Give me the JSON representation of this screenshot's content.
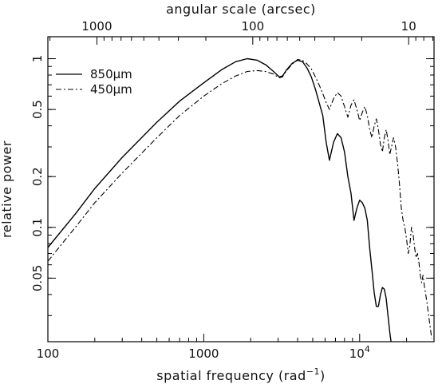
{
  "chart_data": {
    "type": "line",
    "title": "",
    "xlabel": "spatial frequency (rad",
    "xlabel_sup": "−1",
    "xlabel_close": ")",
    "ylabel": "relative power",
    "top_xlabel": "angular scale (arcsec)",
    "x_scale": "log",
    "y_scale": "log",
    "xlim": [
      100,
      30000
    ],
    "ylim": [
      0.021,
      1.35
    ],
    "x_ticks": [
      {
        "value": 100,
        "label": "100"
      },
      {
        "value": 1000,
        "label": "1000"
      },
      {
        "value": 10000,
        "label": "10",
        "sup": "4"
      }
    ],
    "y_ticks": [
      {
        "value": 1,
        "label": "1"
      },
      {
        "value": 0.5,
        "label": "0.5"
      },
      {
        "value": 0.2,
        "label": "0.2"
      },
      {
        "value": 0.1,
        "label": "0.1"
      },
      {
        "value": 0.05,
        "label": "0.05"
      }
    ],
    "top_ticks": [
      {
        "value": 1000,
        "label": "1000"
      },
      {
        "value": 100,
        "label": "100"
      },
      {
        "value": 10,
        "label": "10"
      }
    ],
    "legend_position": "top-left",
    "series": [
      {
        "name": "850μm",
        "color": "#000000",
        "style": "solid",
        "x": [
          100,
          150,
          200,
          300,
          500,
          700,
          1000,
          1300,
          1600,
          1900,
          2200,
          2500,
          2800,
          3050,
          3200,
          3400,
          3700,
          4000,
          4300,
          4600,
          4900,
          5200,
          5500,
          5800,
          6100,
          6400,
          6800,
          7200,
          7600,
          8000,
          8400,
          8800,
          9200,
          9600,
          10000,
          10400,
          10800,
          11200,
          11600,
          12000,
          12400,
          12800,
          13200,
          13600,
          14000,
          14400,
          14800,
          15200,
          15600,
          15900
        ],
        "y": [
          0.076,
          0.12,
          0.17,
          0.26,
          0.42,
          0.56,
          0.72,
          0.86,
          0.96,
          1.0,
          0.98,
          0.92,
          0.84,
          0.78,
          0.79,
          0.86,
          0.94,
          0.98,
          0.96,
          0.88,
          0.78,
          0.66,
          0.55,
          0.46,
          0.32,
          0.25,
          0.32,
          0.36,
          0.34,
          0.28,
          0.2,
          0.16,
          0.11,
          0.13,
          0.145,
          0.14,
          0.13,
          0.11,
          0.075,
          0.056,
          0.041,
          0.034,
          0.034,
          0.04,
          0.044,
          0.043,
          0.038,
          0.03,
          0.024,
          0.021
        ]
      },
      {
        "name": "450μm",
        "color": "#000000",
        "style": "dashdot",
        "x": [
          100,
          150,
          200,
          300,
          500,
          700,
          1000,
          1300,
          1600,
          1900,
          2200,
          2500,
          2800,
          3050,
          3200,
          3400,
          3700,
          4000,
          4300,
          4600,
          4900,
          5200,
          5500,
          5800,
          6100,
          6400,
          6800,
          7200,
          7600,
          8000,
          8400,
          8800,
          9200,
          9600,
          10000,
          10400,
          10800,
          11200,
          11600,
          12000,
          12400,
          12800,
          13200,
          13600,
          14000,
          14400,
          14800,
          15200,
          15600,
          16000,
          16500,
          17000,
          17500,
          18000,
          18500,
          19000,
          19500,
          20000,
          20500,
          21000,
          21500,
          22000,
          22500,
          23000,
          23500,
          24000,
          24500,
          25000,
          25500,
          26000,
          27000,
          28000,
          29000
        ],
        "y": [
          0.063,
          0.1,
          0.14,
          0.21,
          0.34,
          0.46,
          0.6,
          0.71,
          0.79,
          0.84,
          0.85,
          0.84,
          0.81,
          0.77,
          0.78,
          0.85,
          0.93,
          0.99,
          0.98,
          0.93,
          0.87,
          0.78,
          0.7,
          0.62,
          0.55,
          0.5,
          0.58,
          0.63,
          0.6,
          0.52,
          0.45,
          0.53,
          0.57,
          0.5,
          0.43,
          0.48,
          0.52,
          0.46,
          0.38,
          0.34,
          0.4,
          0.44,
          0.38,
          0.31,
          0.28,
          0.34,
          0.38,
          0.33,
          0.27,
          0.3,
          0.34,
          0.3,
          0.24,
          0.18,
          0.13,
          0.11,
          0.1,
          0.085,
          0.07,
          0.078,
          0.1,
          0.092,
          0.076,
          0.066,
          0.07,
          0.062,
          0.052,
          0.047,
          0.052,
          0.045,
          0.036,
          0.028,
          0.022
        ]
      }
    ]
  }
}
